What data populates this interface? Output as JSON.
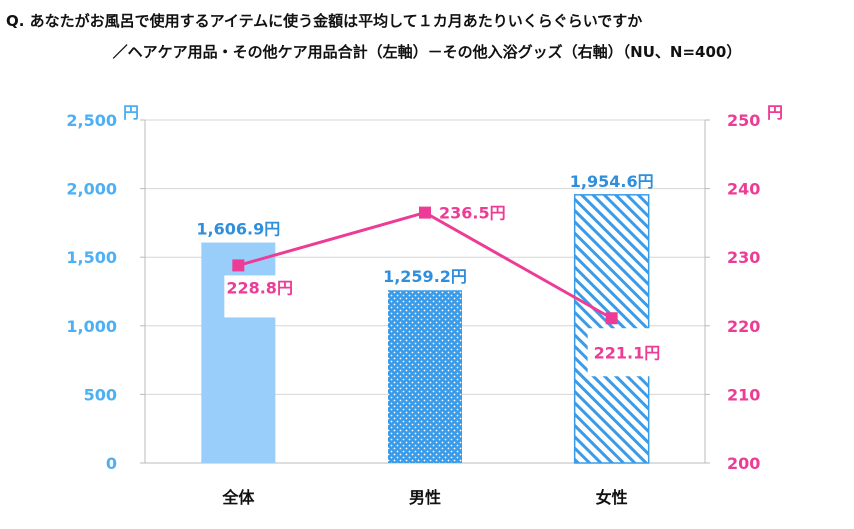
{
  "chart_data": {
    "type": "bar+line",
    "title_line1": "Q. あなたがお風呂で使用するアイテムに使う金額は平均して１カ月あたりいくらぐらいですか",
    "title_line2": "／ヘアケア用品・その他ケア用品合計（左軸）－その他入浴グッズ（右軸）（NU、N=400）",
    "categories": [
      "全体",
      "男性",
      "女性"
    ],
    "bars": {
      "axis": "left",
      "values": [
        1606.9,
        1259.2,
        1954.6
      ],
      "labels": [
        "1,606.9円",
        "1,259.2円",
        "1,954.6円"
      ],
      "fills": [
        "solid",
        "dots",
        "diagonal-stripes"
      ]
    },
    "line": {
      "axis": "right",
      "values": [
        228.8,
        236.5,
        221.1
      ],
      "labels": [
        "228.8円",
        "236.5円",
        "221.1円"
      ]
    },
    "y_left": {
      "min": 0,
      "max": 2500,
      "ticks": [
        0,
        500,
        1000,
        1500,
        2000,
        2500
      ],
      "tick_labels": [
        "0",
        "500",
        "1,000",
        "1,500",
        "2,000",
        "2,500"
      ],
      "unit": "円"
    },
    "y_right": {
      "min": 200,
      "max": 250,
      "ticks": [
        200,
        210,
        220,
        230,
        240,
        250
      ],
      "tick_labels": [
        "200",
        "210",
        "220",
        "230",
        "240",
        "250"
      ],
      "unit": "円"
    },
    "grid": true,
    "colors": {
      "bar": "#99cdfa",
      "bar_pattern": "#3a9be8",
      "line": "#ec3c96",
      "left_axis_text": "#4db0f5",
      "right_axis_text": "#ec3c96",
      "bar_label_text": "#2f8fdd",
      "gridline": "#d6d6d6"
    }
  }
}
